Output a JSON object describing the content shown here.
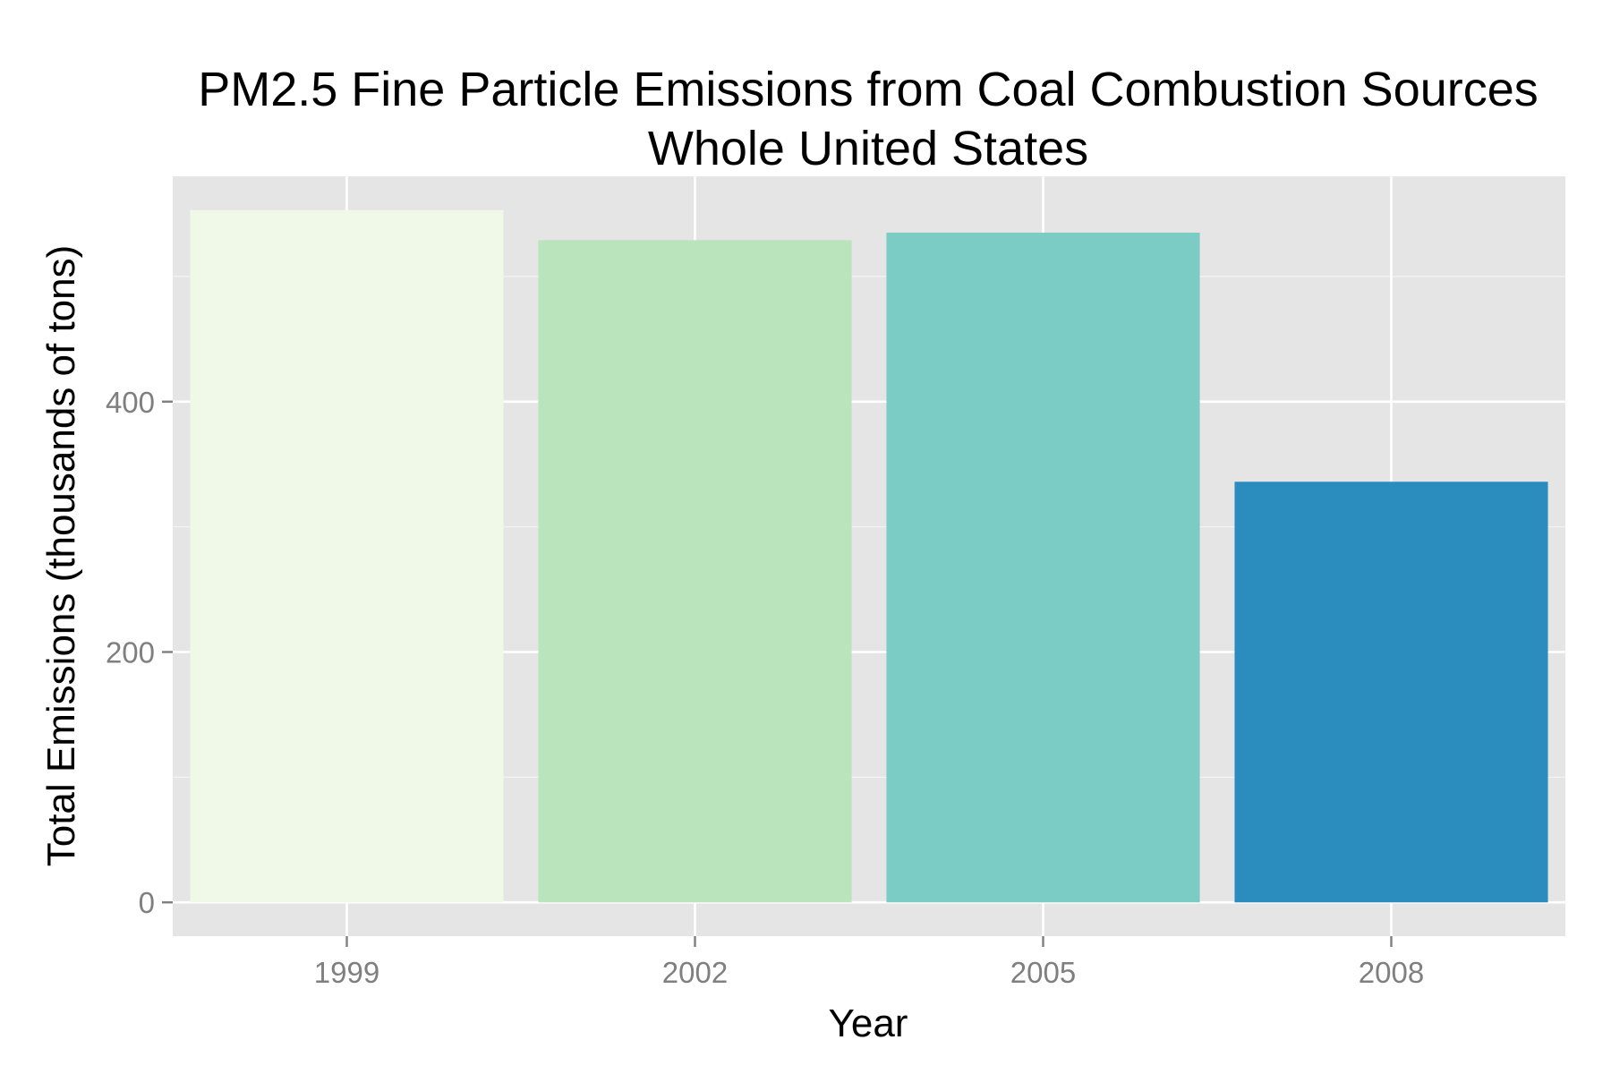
{
  "chart_data": {
    "type": "bar",
    "title": [
      "PM2.5 Fine Particle Emissions from Coal Combustion Sources",
      "Whole United States"
    ],
    "xlabel": "Year",
    "ylabel": "Total Emissions (thousands of tons)",
    "categories": [
      "1999",
      "2002",
      "2005",
      "2008"
    ],
    "values": [
      553,
      529,
      535,
      336
    ],
    "colors": [
      "#f0f9e8",
      "#bae4bc",
      "#7bccc4",
      "#2b8cbe"
    ],
    "ylim": [
      -27,
      580
    ],
    "yticks": [
      0,
      200,
      400
    ],
    "yticks_minor": [
      100,
      300,
      500
    ],
    "grid": true,
    "legend": false,
    "panel_background": "#e5e5e5",
    "grid_color": "#ffffff",
    "tick_label_color": "#7f7f7f"
  }
}
